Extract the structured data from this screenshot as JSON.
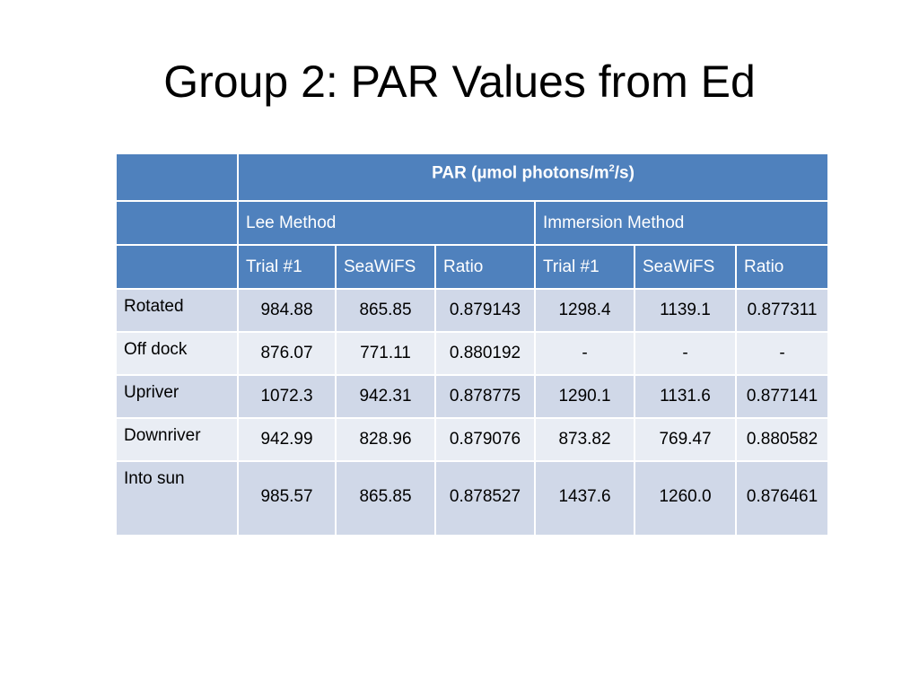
{
  "slide": {
    "title": "Group 2: PAR Values from Ed"
  },
  "table": {
    "main_header": {
      "prefix": "PAR (µmol photons/m",
      "sup": "2",
      "suffix": "/s)"
    },
    "method_headers": [
      "Lee Method",
      "Immersion Method"
    ],
    "sub_headers": [
      "Trial #1",
      "SeaWiFS",
      "Ratio",
      "Trial #1",
      "SeaWiFS",
      "Ratio"
    ],
    "rows": [
      {
        "label": "Rotated",
        "values": [
          "984.88",
          "865.85",
          "0.879143",
          "1298.4",
          "1139.1",
          "0.877311"
        ]
      },
      {
        "label": "Off dock",
        "values": [
          "876.07",
          "771.11",
          "0.880192",
          "-",
          "-",
          "-"
        ]
      },
      {
        "label": "Upriver",
        "values": [
          "1072.3",
          "942.31",
          "0.878775",
          "1290.1",
          "1131.6",
          "0.877141"
        ]
      },
      {
        "label": "Downriver",
        "values": [
          "942.99",
          "828.96",
          "0.879076",
          "873.82",
          "769.47",
          "0.880582"
        ]
      },
      {
        "label": "Into sun",
        "values": [
          "985.57",
          "865.85",
          "0.878527",
          "1437.6",
          "1260.0",
          "0.876461"
        ]
      }
    ]
  },
  "colors": {
    "header_blue": "#4f81bd",
    "row_dark": "#d0d8e8",
    "row_light": "#e9edf4"
  }
}
